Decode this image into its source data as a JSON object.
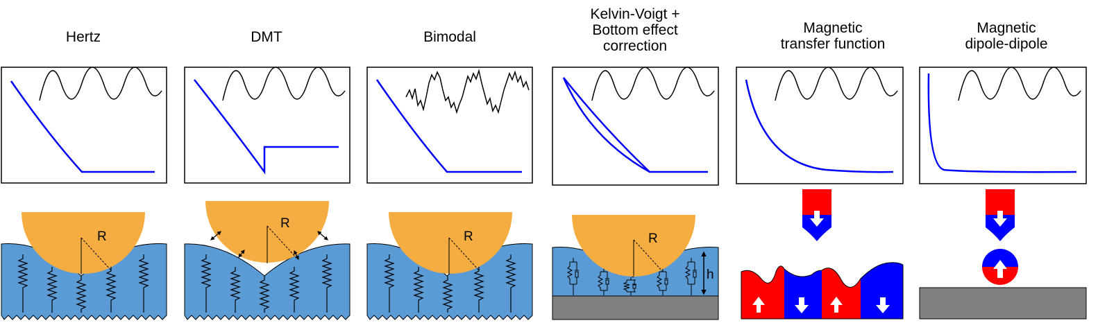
{
  "titles": [
    "Hertz",
    "DMT",
    "Bimodal",
    "Kelvin-Voigt +\nBottom effect\ncorrection",
    "Magnetic\ntransfer function",
    "Magnetic\ndipole-dipole"
  ],
  "labels": {
    "radius": "R",
    "height": "h"
  },
  "colors": {
    "curve": "#0000ff",
    "wave": "#000000",
    "sphere": "#f5ad42",
    "sample": "#5b9bd5",
    "substrate": "#808080",
    "magnet_north": "#ff0000",
    "magnet_south": "#0000ff"
  }
}
